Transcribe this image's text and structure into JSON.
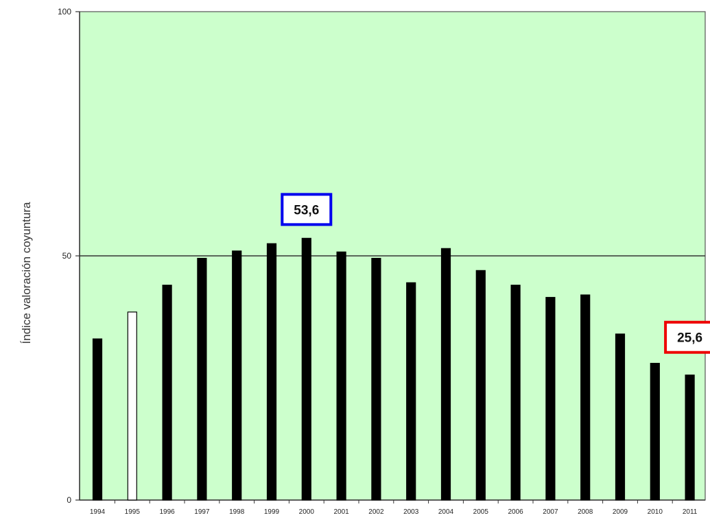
{
  "chart_data": {
    "type": "bar",
    "ylabel": "Índice valoración coyuntura",
    "xlabel": "",
    "ylim": [
      0,
      100
    ],
    "yticks": [
      0,
      50,
      100
    ],
    "categories": [
      "1994",
      "1995",
      "1996",
      "1997",
      "1998",
      "1999",
      "2000",
      "2001",
      "2002",
      "2003",
      "2004",
      "2005",
      "2006",
      "2007",
      "2008",
      "2009",
      "2010",
      "2011"
    ],
    "values": [
      33.0,
      38.5,
      44.0,
      49.5,
      51.0,
      52.5,
      53.6,
      50.8,
      49.5,
      44.5,
      51.5,
      47.0,
      44.0,
      41.5,
      42.0,
      34.0,
      28.0,
      25.6
    ],
    "highlight_category": "1995",
    "reference_line": 50,
    "grid": false,
    "background_color": "#ccffcc",
    "bar_color": "#000000",
    "highlight_bar_color": "#ffffff",
    "callouts": [
      {
        "label": "53,6",
        "category": "2000",
        "value": 53.6,
        "border_color": "#0000ee"
      },
      {
        "label": "25,6",
        "category": "2011",
        "value": 25.6,
        "border_color": "#ee0000"
      }
    ]
  }
}
